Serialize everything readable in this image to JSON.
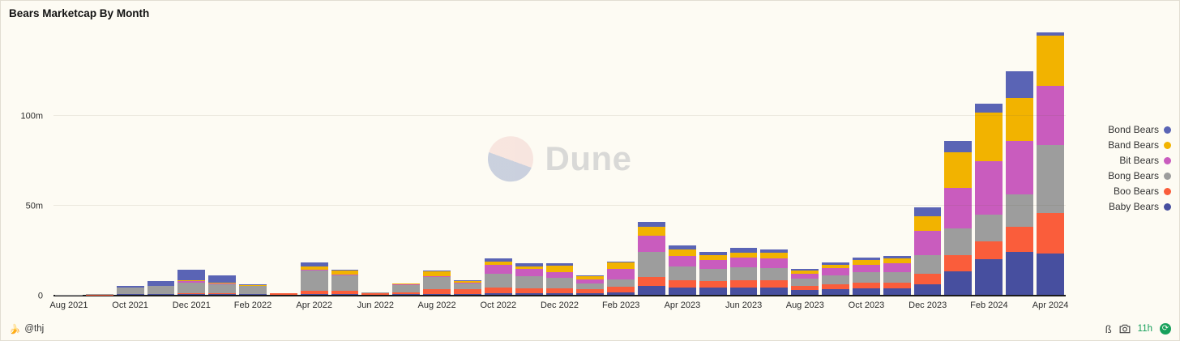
{
  "header": {
    "title": "Bears Marketcap By Month"
  },
  "watermark": {
    "text": "Dune",
    "logo": "dune-logo"
  },
  "footer": {
    "author_icon": "🍌",
    "author": "@thj",
    "beta_icon": "ß",
    "camera_icon": "camera-icon",
    "updated": "11h",
    "refresh_icon": "⟳"
  },
  "chart_data": {
    "type": "bar",
    "stacked": true,
    "title": "Bears Marketcap By Month",
    "xlabel": "",
    "ylabel": "",
    "ylim": [
      0,
      150
    ],
    "y_ticks": [
      {
        "value": 0,
        "label": "0"
      },
      {
        "value": 50,
        "label": "50m"
      },
      {
        "value": 100,
        "label": "100m"
      }
    ],
    "x_tick_every": 2,
    "legend_position": "right",
    "grid": "faint-horizontal",
    "x": [
      "Aug 2021",
      "Sep 2021",
      "Oct 2021",
      "Nov 2021",
      "Dec 2021",
      "Jan 2022",
      "Feb 2022",
      "Mar 2022",
      "Apr 2022",
      "May 2022",
      "Jun 2022",
      "Jul 2022",
      "Aug 2022",
      "Sep 2022",
      "Oct 2022",
      "Nov 2022",
      "Dec 2022",
      "Jan 2023",
      "Feb 2023",
      "Mar 2023",
      "Apr 2023",
      "May 2023",
      "Jun 2023",
      "Jul 2023",
      "Aug 2023",
      "Sep 2023",
      "Oct 2023",
      "Nov 2023",
      "Dec 2023",
      "Jan 2024",
      "Feb 2024",
      "Mar 2024",
      "Apr 2024"
    ],
    "series_note": "values in millions; listed in legend order top-to-bottom; stacked bottom-to-top in reverse order (Baby Bears at bottom)",
    "series": [
      {
        "name": "Bond Bears",
        "color": "#5a64b5",
        "values": [
          0,
          0,
          1,
          2.3,
          6,
          4,
          0.5,
          0,
          2,
          0.5,
          0,
          0.2,
          0.5,
          0.5,
          2,
          1.5,
          1,
          0.5,
          0.5,
          3,
          2,
          2,
          3,
          2,
          1,
          1,
          1.5,
          1.5,
          5,
          6,
          5,
          15,
          2
        ]
      },
      {
        "name": "Band Bears",
        "color": "#f2b300",
        "values": [
          0,
          0,
          0,
          0.2,
          0.5,
          0.5,
          0.3,
          0,
          2,
          2,
          0,
          0.5,
          2.5,
          0.5,
          1.5,
          1.5,
          4,
          2,
          3.5,
          5,
          3.5,
          2.5,
          2.5,
          3,
          1.5,
          2,
          2.5,
          3,
          8,
          20,
          27,
          24,
          28
        ]
      },
      {
        "name": "Bit Bears",
        "color": "#c95cbe",
        "values": [
          0,
          0,
          0,
          0,
          0.5,
          0.5,
          0.2,
          0,
          0.5,
          0.5,
          0,
          0.3,
          0.5,
          0.5,
          5,
          4,
          3,
          2,
          6,
          9,
          6,
          5,
          5.5,
          5.5,
          3,
          4,
          4.5,
          5,
          14,
          23,
          30,
          30,
          33
        ]
      },
      {
        "name": "Bong Bears",
        "color": "#9d9d9d",
        "values": [
          0.2,
          0.2,
          3.5,
          4.4,
          6,
          5,
          4.4,
          0.3,
          11,
          8.5,
          0.5,
          4,
          7,
          3.5,
          8,
          7,
          6,
          3.5,
          4,
          14,
          8,
          7,
          7.5,
          7,
          4,
          5,
          5.5,
          5.5,
          10,
          15,
          15,
          18,
          38
        ]
      },
      {
        "name": "Boo Bears",
        "color": "#fa5d3b",
        "values": [
          0,
          0.1,
          0.2,
          0.3,
          0.5,
          0.5,
          0.3,
          0.7,
          2,
          2,
          1,
          1.2,
          2.5,
          2.5,
          3,
          2.5,
          2.5,
          2,
          3,
          5,
          4,
          3.5,
          4,
          4,
          2.5,
          3,
          3.5,
          3.5,
          6,
          9,
          10,
          14,
          23
        ]
      },
      {
        "name": "Baby Bears",
        "color": "#474f9f",
        "values": [
          0,
          0,
          0.3,
          0.3,
          0.5,
          0.5,
          0.3,
          0,
          0.5,
          0.5,
          0,
          0.3,
          0.5,
          0.5,
          1,
          1,
          1,
          1,
          1.5,
          5,
          4,
          4,
          4,
          4,
          2.5,
          3,
          3.5,
          3.5,
          6,
          13,
          20,
          24,
          23
        ]
      }
    ]
  }
}
